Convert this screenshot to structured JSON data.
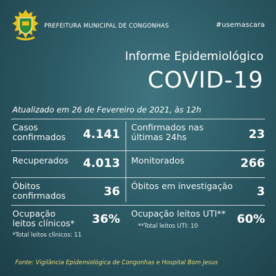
{
  "header": {
    "organization": "PREFEITURA MUNICIPAL DE CONGONHAS",
    "hashtag": "#usemascara"
  },
  "title": "Informe Epidemiológico",
  "subtitle": "COVID-19",
  "updated": "Atualizado em 26 de Fevereiro de 2021, às 12h",
  "cells": [
    {
      "label": "Casos confirmados",
      "value": "4.141"
    },
    {
      "label": "Confirmados nas últimas 24hs",
      "value": "23"
    },
    {
      "label": "Recuperados",
      "value": "4.013"
    },
    {
      "label": "Monitorados",
      "value": "266"
    },
    {
      "label": "Óbitos confirmados",
      "value": "36"
    },
    {
      "label": "Óbitos em investigação",
      "value": "3"
    },
    {
      "label": "Ocupação leitos clínicos*",
      "value": "36%",
      "note": "*Total leitos clínicos: 11"
    },
    {
      "label": "Ocupação leitos UTI**",
      "value": "60%",
      "note": "**Total leitos UTI: 10"
    }
  ],
  "source": "Fonte: Vigilância Epidemiológica de Congonhas e Hospital Bom Jesus"
}
